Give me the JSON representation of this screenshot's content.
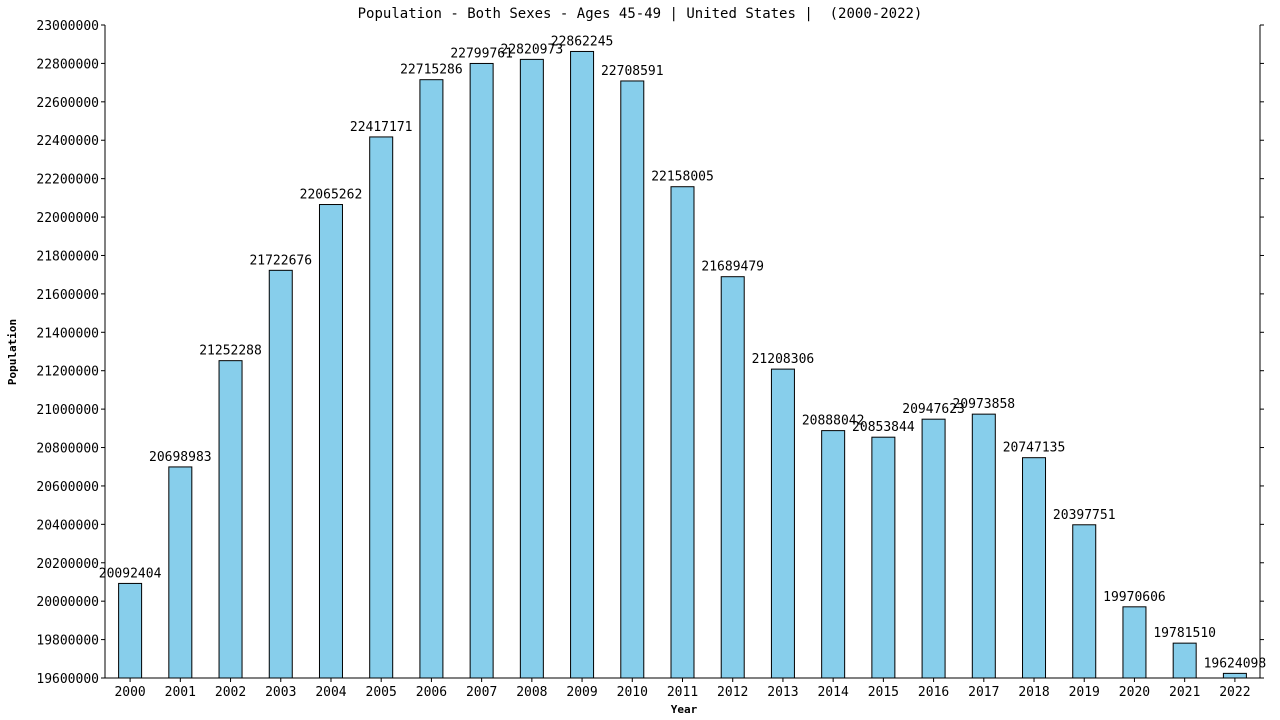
{
  "chart_data": {
    "type": "bar",
    "title": "Population - Both Sexes - Ages 45-49 | United States |  (2000-2022)",
    "xlabel": "Year",
    "ylabel": "Population",
    "categories": [
      "2000",
      "2001",
      "2002",
      "2003",
      "2004",
      "2005",
      "2006",
      "2007",
      "2008",
      "2009",
      "2010",
      "2011",
      "2012",
      "2013",
      "2014",
      "2015",
      "2016",
      "2017",
      "2018",
      "2019",
      "2020",
      "2021",
      "2022"
    ],
    "values": [
      20092404,
      20698983,
      21252288,
      21722676,
      22065262,
      22417171,
      22715286,
      22799761,
      22820973,
      22862245,
      22708591,
      22158005,
      21689479,
      21208306,
      20888042,
      20853844,
      20947623,
      20973858,
      20747135,
      20397751,
      19970606,
      19781510,
      19624098
    ],
    "data_labels": [
      "20092404",
      "20698983",
      "21252288",
      "21722676",
      "22065262",
      "22417171",
      "22715286",
      "22799761",
      "22820973",
      "22862245",
      "22708591",
      "22158005",
      "21689479",
      "21208306",
      "20888042",
      "20853844",
      "20947623",
      "20973858",
      "20747135",
      "20397751",
      "19970606",
      "19781510",
      "19624098"
    ],
    "ylim": [
      19600000,
      23000000
    ],
    "yticks": [
      "19600000",
      "19800000",
      "20000000",
      "20200000",
      "20400000",
      "20600000",
      "20800000",
      "21000000",
      "21200000",
      "21400000",
      "21600000",
      "21800000",
      "22000000",
      "22200000",
      "22400000",
      "22600000",
      "22800000",
      "23000000"
    ],
    "grid": false,
    "legend": "none",
    "colors": {
      "bar_fill": "#87ceeb",
      "bar_stroke": "#000000",
      "axis": "#000000",
      "background": "#ffffff"
    }
  }
}
